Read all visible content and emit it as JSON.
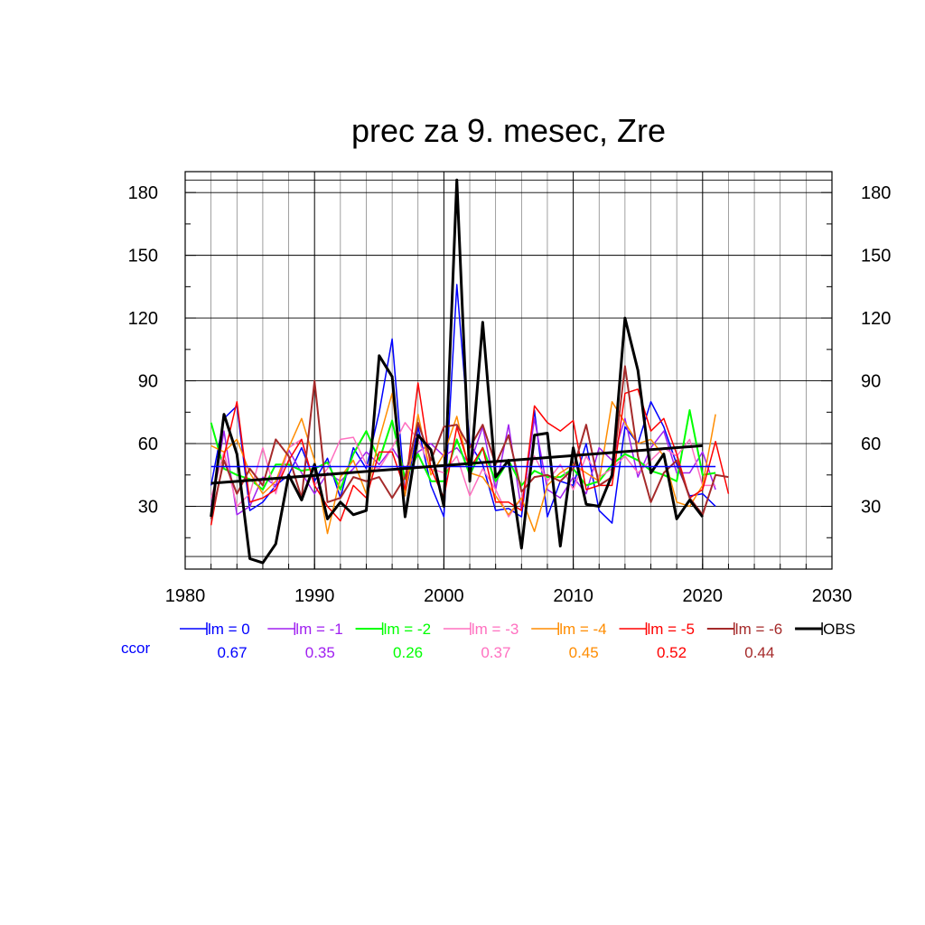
{
  "chart_data": {
    "type": "line",
    "title": "prec za 9. mesec, Zre",
    "xlabel": "",
    "ylabel": "",
    "xlim": [
      1980,
      2030
    ],
    "ylim": [
      0,
      190
    ],
    "x_ticks": [
      1980,
      1990,
      2000,
      2010,
      2020,
      2030
    ],
    "y_ticks": [
      30,
      60,
      90,
      120,
      150,
      180
    ],
    "grid": true,
    "legend_placement": "bottom",
    "ccor_label": "ccor",
    "ccor_label_color": "#0000ff",
    "x": [
      1982,
      1983,
      1984,
      1985,
      1986,
      1987,
      1988,
      1989,
      1990,
      1991,
      1992,
      1993,
      1994,
      1995,
      1996,
      1997,
      1998,
      1999,
      2000,
      2001,
      2002,
      2003,
      2004,
      2005,
      2006,
      2007,
      2008,
      2009,
      2010,
      2011,
      2012,
      2013,
      2014,
      2015,
      2016,
      2017,
      2018,
      2019,
      2020,
      2021
    ],
    "series": [
      {
        "name": "lm = 0",
        "color": "#0000ff",
        "ccor": "0.67",
        "width": 1.5,
        "values": [
          40,
          72,
          78,
          28,
          32,
          40,
          45,
          58,
          42,
          53,
          34,
          58,
          48,
          75,
          110,
          35,
          68,
          40,
          25,
          136,
          60,
          50,
          28,
          29,
          25,
          76,
          25,
          42,
          40,
          60,
          28,
          22,
          68,
          60,
          80,
          68,
          50,
          35,
          36,
          30
        ]
      },
      {
        "name": "lm = -1",
        "color": "#a020f0",
        "ccor": "0.35",
        "width": 1.5,
        "values": [
          30,
          66,
          26,
          30,
          44,
          40,
          57,
          46,
          36,
          46,
          42,
          48,
          56,
          50,
          58,
          48,
          56,
          60,
          54,
          58,
          50,
          68,
          38,
          69,
          28,
          72,
          38,
          34,
          44,
          36,
          58,
          52,
          72,
          44,
          58,
          66,
          46,
          46,
          56,
          38
        ]
      },
      {
        "name": "lm = -2",
        "color": "#00ff00",
        "ccor": "0.26",
        "width": 2,
        "values": [
          70,
          48,
          45,
          43,
          38,
          50,
          50,
          47,
          48,
          51,
          38,
          55,
          66,
          52,
          71,
          43,
          55,
          42,
          42,
          62,
          45,
          58,
          42,
          52,
          40,
          47,
          44,
          44,
          48,
          40,
          42,
          50,
          55,
          52,
          47,
          45,
          42,
          76,
          45,
          46
        ]
      },
      {
        "name": "lm = -3",
        "color": "#ff70c0",
        "ccor": "0.37",
        "width": 1.5,
        "values": [
          34,
          56,
          30,
          36,
          58,
          36,
          58,
          62,
          40,
          48,
          62,
          63,
          50,
          48,
          58,
          70,
          62,
          48,
          46,
          54,
          35,
          48,
          38,
          25,
          34,
          54,
          42,
          50,
          38,
          54,
          44,
          48,
          54,
          46,
          52,
          58,
          54,
          62,
          40,
          40
        ]
      },
      {
        "name": "lm = -4",
        "color": "#ff8c00",
        "ccor": "0.45",
        "width": 1.5,
        "values": [
          59,
          56,
          62,
          46,
          36,
          42,
          58,
          72,
          52,
          17,
          44,
          52,
          36,
          62,
          84,
          35,
          74,
          45,
          55,
          73,
          46,
          44,
          35,
          26,
          34,
          18,
          40,
          46,
          50,
          46,
          42,
          80,
          70,
          60,
          62,
          54,
          32,
          30,
          40,
          74
        ]
      },
      {
        "name": "lm = -5",
        "color": "#ff0000",
        "ccor": "0.52",
        "width": 1.5,
        "values": [
          21,
          54,
          80,
          32,
          34,
          38,
          52,
          62,
          40,
          30,
          23,
          40,
          34,
          56,
          56,
          38,
          89,
          48,
          34,
          68,
          48,
          58,
          32,
          32,
          28,
          78,
          70,
          66,
          71,
          38,
          40,
          40,
          84,
          86,
          66,
          72,
          55,
          34,
          38,
          61
        ]
      },
      {
        "name": "lm = -6",
        "color": "#a52a2a",
        "ccor": "0.44",
        "width": 2,
        "values": [
          24,
          52,
          36,
          48,
          40,
          62,
          54,
          34,
          90,
          32,
          34,
          44,
          42,
          44,
          34,
          44,
          70,
          52,
          68,
          69,
          58,
          69,
          50,
          64,
          37,
          44,
          45,
          42,
          48,
          69,
          40,
          44,
          97,
          54,
          32,
          46,
          52,
          34,
          26,
          45
        ]
      },
      {
        "name": "OBS",
        "color": "#000000",
        "ccor": "",
        "width": 3,
        "values": [
          25,
          74,
          55,
          5,
          3,
          12,
          45,
          33,
          50,
          24,
          32,
          26,
          28,
          102,
          92,
          25,
          64,
          57,
          30,
          186,
          42,
          118,
          44,
          52,
          10,
          64,
          65,
          11,
          58,
          31,
          30,
          45,
          120,
          95,
          46,
          55,
          24,
          33,
          25,
          null
        ]
      }
    ],
    "extra_points": [
      {
        "series": "lm = -5",
        "x": 2022,
        "y": 36
      },
      {
        "series": "lm = -6",
        "x": 2022,
        "y": 44
      }
    ],
    "reference_lines": [
      {
        "kind": "mean",
        "color": "#0000ff",
        "x0": 1982,
        "y0": 49,
        "x1": 2021,
        "y1": 49
      },
      {
        "kind": "trend",
        "color": "#000000",
        "x0": 1982,
        "y0": 41,
        "x1": 2020,
        "y1": 59
      }
    ]
  }
}
